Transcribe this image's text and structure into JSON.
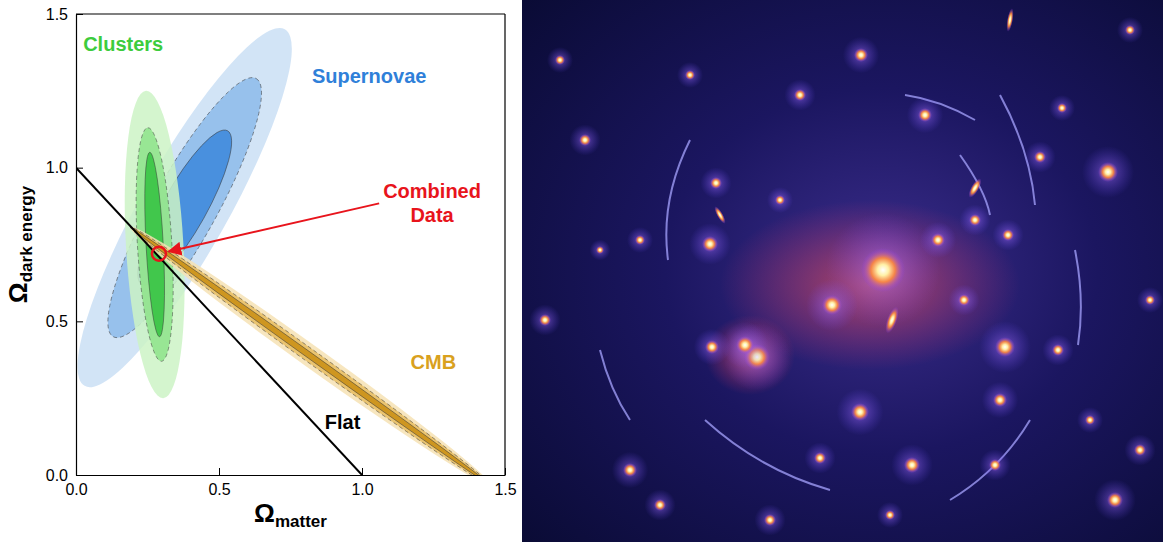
{
  "chart_data": {
    "type": "contour",
    "xlabel": "Ωmatter",
    "ylabel": "Ωdark energy",
    "xlim": [
      0,
      1.5
    ],
    "ylim": [
      0,
      1.5
    ],
    "xticks": [
      {
        "value": 0,
        "label": "0.0"
      },
      {
        "value": 0.5,
        "label": "0.5"
      },
      {
        "value": 1,
        "label": "1.0"
      },
      {
        "value": 1.5,
        "label": "1.5"
      }
    ],
    "yticks": [
      {
        "value": 0,
        "label": "0.0"
      },
      {
        "value": 0.5,
        "label": "0.5"
      },
      {
        "value": 1,
        "label": "1.0"
      },
      {
        "value": 1.5,
        "label": "1.5"
      }
    ],
    "series": [
      {
        "name": "Supernovae",
        "type": "ellipse",
        "color": "#2f80d9",
        "colors": [
          "#3b87dc",
          "#8dbbea",
          "#cadff5"
        ],
        "center": [
          0.38,
          0.87
        ],
        "levels": [
          {
            "major_end": [
              0.53,
              1.12
            ],
            "minor_end": [
              0.316,
              0.909
            ]
          },
          {
            "major_end": [
              0.63,
              1.29
            ],
            "minor_end": [
              0.286,
              0.927
            ]
          },
          {
            "major_end": [
              0.73,
              1.45
            ],
            "minor_end": [
              0.251,
              0.947
            ]
          }
        ]
      },
      {
        "name": "Clusters",
        "type": "ellipse",
        "color": "#3dcc3d",
        "colors": [
          "#33c23f",
          "#8de38a",
          "#cdf3c6"
        ],
        "center": [
          0.275,
          0.75
        ],
        "levels": [
          {
            "major_end": [
              0.258,
              1.05
            ],
            "minor_end": [
              0.305,
              0.752
            ]
          },
          {
            "major_end": [
              0.251,
              1.13
            ],
            "minor_end": [
              0.335,
              0.755
            ]
          },
          {
            "major_end": [
              0.245,
              1.25
            ],
            "minor_end": [
              0.375,
              0.758
            ]
          }
        ]
      },
      {
        "name": "CMB",
        "type": "ellipse",
        "color": "#d9a11e",
        "colors": [
          "#c98e12",
          "#e8bd62",
          "#f6e2b4"
        ],
        "center": [
          0.82,
          0.387
        ],
        "levels": [
          {
            "major_end": [
              1.45,
              -0.033
            ],
            "minor_end": [
              0.826,
              0.395
            ]
          },
          {
            "major_end": [
              1.45,
              -0.033
            ],
            "minor_end": [
              0.832,
              0.405
            ]
          },
          {
            "major_end": [
              1.45,
              -0.033
            ],
            "minor_end": [
              0.84,
              0.417
            ]
          }
        ]
      },
      {
        "name": "Flat",
        "type": "line",
        "color": "#000000",
        "x": [
          0,
          1
        ],
        "values": [
          1,
          0
        ]
      },
      {
        "name": "Combined Data",
        "type": "scatter",
        "color": "#e8141c",
        "marker": "circle",
        "x": [
          0.29
        ],
        "values": [
          0.72
        ]
      }
    ]
  }
}
